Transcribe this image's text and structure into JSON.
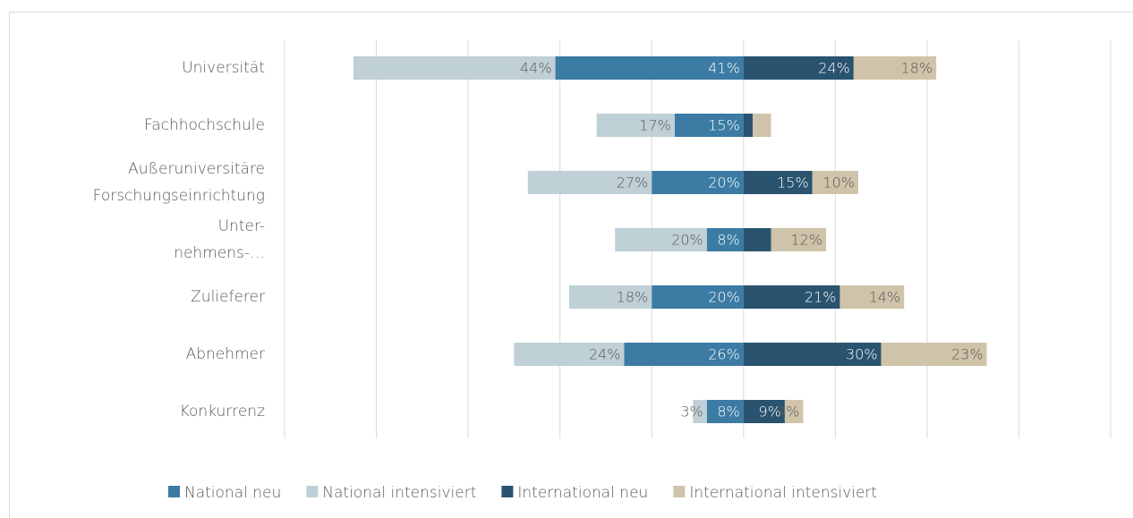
{
  "chart_data": {
    "type": "diverging-bar",
    "categories": [
      [
        "Universität"
      ],
      [
        "Fachhochschule"
      ],
      [
        "Außeruniversitäre",
        "Forschungseinrichtung"
      ],
      [
        "Unter-",
        "nehmens-…"
      ],
      [
        "Zulieferer"
      ],
      [
        "Abnehmer"
      ],
      [
        "Konkurrenz"
      ]
    ],
    "series": [
      {
        "name": "National neu",
        "color": "#3b7ba4",
        "values": [
          41,
          15,
          20,
          8,
          20,
          26,
          8
        ],
        "value_labels": [
          "41%",
          "15%",
          "20%",
          "8%",
          "20%",
          "26%",
          "8%"
        ]
      },
      {
        "name": "National intensiviert",
        "color": "#bfd0d6",
        "values": [
          44,
          17,
          27,
          20,
          18,
          24,
          3
        ],
        "value_labels": [
          "44%",
          "17%",
          "27%",
          "20%",
          "18%",
          "24%",
          "3%"
        ]
      },
      {
        "name": "International neu",
        "color": "#29536f",
        "values": [
          24,
          2,
          15,
          6,
          21,
          30,
          9
        ],
        "value_labels": [
          "24%",
          null,
          "15%",
          null,
          "21%",
          "30%",
          "9%"
        ]
      },
      {
        "name": "International intensiviert",
        "color": "#cfc3a9",
        "values": [
          18,
          4,
          10,
          12,
          14,
          23,
          4
        ],
        "value_labels": [
          "18%",
          null,
          "10%",
          "12%",
          "14%",
          "23%",
          "4%"
        ]
      }
    ],
    "xlim": [
      -100,
      80
    ],
    "xticks": [
      -100,
      -80,
      -60,
      -40,
      -20,
      0,
      20,
      40,
      60,
      80
    ],
    "grid": true
  }
}
